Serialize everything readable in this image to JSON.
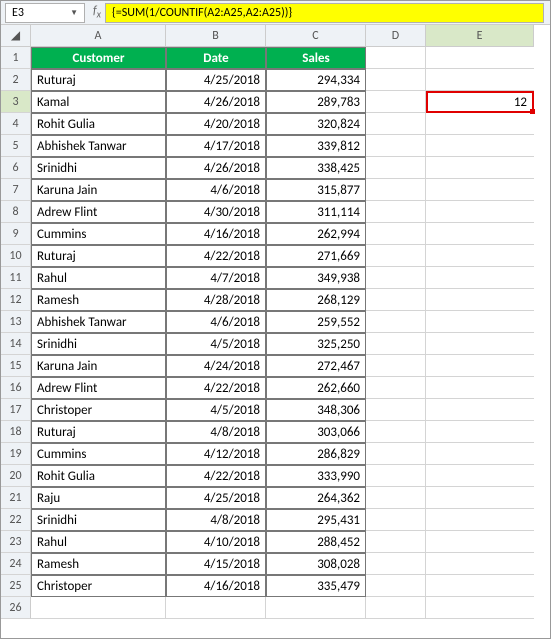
{
  "namebox": "E3",
  "formula": "{=SUM(1/COUNTIF(A2:A25,A2:A25))}",
  "columns": [
    "A",
    "B",
    "C",
    "D",
    "E"
  ],
  "headers": [
    "Customer",
    "Date",
    "Sales"
  ],
  "result": "12",
  "rows": [
    {
      "n": "2",
      "a": "Ruturaj",
      "b": "4/25/2018",
      "c": "294,334"
    },
    {
      "n": "3",
      "a": "Kamal",
      "b": "4/26/2018",
      "c": "289,783"
    },
    {
      "n": "4",
      "a": "Rohit Gulia",
      "b": "4/20/2018",
      "c": "320,824"
    },
    {
      "n": "5",
      "a": "Abhishek Tanwar",
      "b": "4/17/2018",
      "c": "339,812"
    },
    {
      "n": "6",
      "a": "Srinidhi",
      "b": "4/26/2018",
      "c": "338,425"
    },
    {
      "n": "7",
      "a": "Karuna Jain",
      "b": "4/6/2018",
      "c": "315,877"
    },
    {
      "n": "8",
      "a": "Adrew Flint",
      "b": "4/30/2018",
      "c": "311,114"
    },
    {
      "n": "9",
      "a": "Cummins",
      "b": "4/16/2018",
      "c": "262,994"
    },
    {
      "n": "10",
      "a": "Ruturaj",
      "b": "4/22/2018",
      "c": "271,669"
    },
    {
      "n": "11",
      "a": "Rahul",
      "b": "4/7/2018",
      "c": "349,938"
    },
    {
      "n": "12",
      "a": "Ramesh",
      "b": "4/28/2018",
      "c": "268,129"
    },
    {
      "n": "13",
      "a": "Abhishek Tanwar",
      "b": "4/6/2018",
      "c": "259,552"
    },
    {
      "n": "14",
      "a": "Srinidhi",
      "b": "4/5/2018",
      "c": "325,250"
    },
    {
      "n": "15",
      "a": "Karuna Jain",
      "b": "4/24/2018",
      "c": "272,467"
    },
    {
      "n": "16",
      "a": "Adrew Flint",
      "b": "4/22/2018",
      "c": "262,660"
    },
    {
      "n": "17",
      "a": "Christoper",
      "b": "4/5/2018",
      "c": "348,306"
    },
    {
      "n": "18",
      "a": "Ruturaj",
      "b": "4/8/2018",
      "c": "303,066"
    },
    {
      "n": "19",
      "a": "Cummins",
      "b": "4/12/2018",
      "c": "286,829"
    },
    {
      "n": "20",
      "a": "Rohit Gulia",
      "b": "4/22/2018",
      "c": "333,990"
    },
    {
      "n": "21",
      "a": "Raju",
      "b": "4/25/2018",
      "c": "264,362"
    },
    {
      "n": "22",
      "a": "Srinidhi",
      "b": "4/8/2018",
      "c": "295,431"
    },
    {
      "n": "23",
      "a": "Rahul",
      "b": "4/10/2018",
      "c": "288,452"
    },
    {
      "n": "24",
      "a": "Ramesh",
      "b": "4/15/2018",
      "c": "308,028"
    },
    {
      "n": "25",
      "a": "Christoper",
      "b": "4/16/2018",
      "c": "335,479"
    }
  ]
}
